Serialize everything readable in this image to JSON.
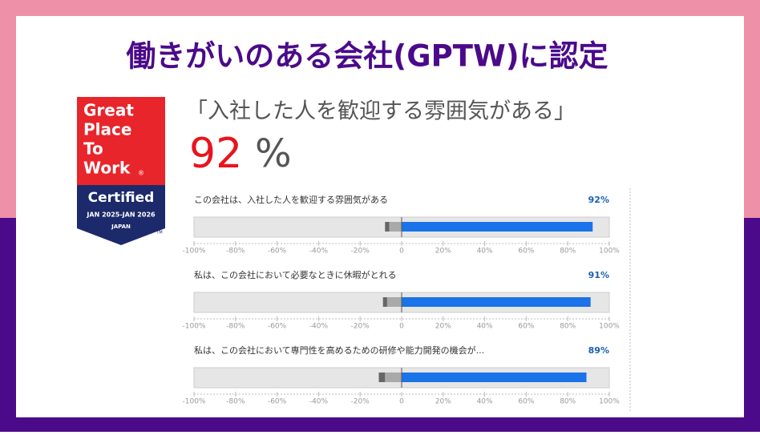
{
  "header": {
    "title": "働きがいのある会社(GPTW)に認定"
  },
  "badge": {
    "lines": [
      "Great",
      "Place",
      "To",
      "Work"
    ],
    "registered": "®",
    "certified": "Certified",
    "period": "JAN 2025-JAN 2026",
    "country": "JAPAN",
    "tm": "TM"
  },
  "highlight": {
    "quote": "「入社した人を歓迎する雰囲気がある」",
    "number": "92",
    "unit": "%"
  },
  "chart_data": [
    {
      "type": "bar",
      "orientation": "horizontal",
      "title": "この会社は、入社した人を歓迎する雰囲気がある",
      "series": [
        {
          "color": "#1a73e8",
          "values": [
            92
          ],
          "value_labels": [
            "92%"
          ]
        },
        {
          "color": "#a9a9a9",
          "values": [
            -6
          ]
        },
        {
          "color": "#666666",
          "values": [
            -2
          ]
        }
      ],
      "xlim": [
        -100,
        100
      ],
      "xticks": [
        {
          "value": -100,
          "label": "-100%"
        },
        {
          "value": -80,
          "label": "-80%"
        },
        {
          "value": -60,
          "label": "-60%"
        },
        {
          "value": -40,
          "label": "-40%"
        },
        {
          "value": -20,
          "label": "-20%"
        },
        0,
        {
          "value": 20,
          "label": "20%"
        },
        {
          "value": 40,
          "label": "40%"
        },
        {
          "value": 60,
          "label": "60%"
        },
        {
          "value": 80,
          "label": "80%"
        },
        {
          "value": 100,
          "label": "100%"
        }
      ]
    },
    {
      "type": "bar",
      "orientation": "horizontal",
      "title": "私は、この会社において必要なときに休暇がとれる",
      "series": [
        {
          "color": "#1a73e8",
          "values": [
            91
          ],
          "value_labels": [
            "91%"
          ]
        },
        {
          "color": "#a9a9a9",
          "values": [
            -7
          ]
        },
        {
          "color": "#666666",
          "values": [
            -2
          ]
        }
      ],
      "xlim": [
        -100,
        100
      ],
      "xticks": [
        {
          "value": -100,
          "label": "-100%"
        },
        {
          "value": -80,
          "label": "-80%"
        },
        {
          "value": -60,
          "label": "-60%"
        },
        {
          "value": -40,
          "label": "-40%"
        },
        {
          "value": -20,
          "label": "-20%"
        },
        0,
        {
          "value": 20,
          "label": "20%"
        },
        {
          "value": 40,
          "label": "40%"
        },
        {
          "value": 60,
          "label": "60%"
        },
        {
          "value": 80,
          "label": "80%"
        },
        {
          "value": 100,
          "label": "100%"
        }
      ]
    },
    {
      "type": "bar",
      "orientation": "horizontal",
      "title": "私は、この会社において専門性を高めるための研修や能力開発の機会が...",
      "series": [
        {
          "color": "#1a73e8",
          "values": [
            89
          ],
          "value_labels": [
            "89%"
          ]
        },
        {
          "color": "#a9a9a9",
          "values": [
            -8
          ]
        },
        {
          "color": "#666666",
          "values": [
            -3
          ]
        }
      ],
      "xlim": [
        -100,
        100
      ],
      "xticks": [
        {
          "value": -100,
          "label": "-100%"
        },
        {
          "value": -80,
          "label": "-80%"
        },
        {
          "value": -60,
          "label": "-60%"
        },
        {
          "value": -40,
          "label": "-40%"
        },
        {
          "value": -20,
          "label": "-20%"
        },
        0,
        {
          "value": 20,
          "label": "20%"
        },
        {
          "value": 40,
          "label": "40%"
        },
        {
          "value": 60,
          "label": "60%"
        },
        {
          "value": 80,
          "label": "80%"
        },
        {
          "value": 100,
          "label": "100%"
        }
      ]
    }
  ]
}
